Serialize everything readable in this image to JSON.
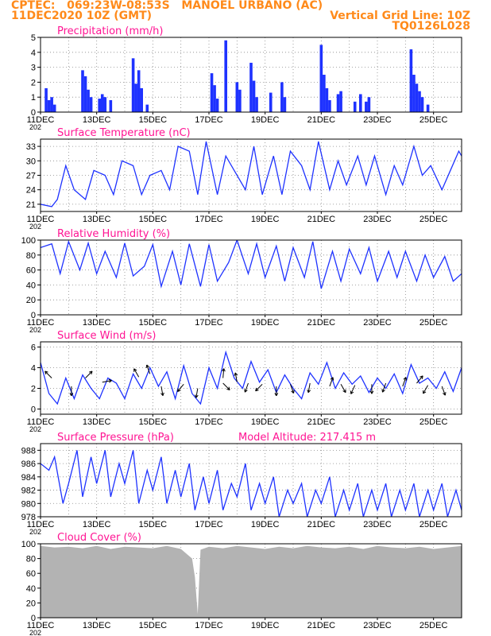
{
  "header": {
    "line1": "CPTEC:   069:23W-08:53S   MANOEL URBANO (AC)",
    "line2": "11DEC2020 10Z (GMT)",
    "grid_note": "Vertical Grid Line: 10Z",
    "code": "TQ0126L028"
  },
  "colors": {
    "header": "#ff8a1a",
    "title": "#ff1493",
    "series": "#1e32ff",
    "cloud": "#b3b3b3",
    "wind_arrow": "#000000",
    "grid": "#888888"
  },
  "x_axis": {
    "range_days": [
      11,
      26
    ],
    "tick_labels": [
      "11DEC",
      "13DEC",
      "15DEC",
      "17DEC",
      "19DEC",
      "21DEC",
      "23DEC",
      "25DEC"
    ],
    "year_fragment": "202"
  },
  "chart_data": [
    {
      "id": "precip",
      "type": "bar",
      "title": "Precipitation  (mm/h)",
      "ylim": [
        0,
        5
      ],
      "yticks": [
        "0",
        "1",
        "2",
        "3",
        "4",
        "5"
      ],
      "series": [
        {
          "x": [
            11.2,
            11.3,
            11.4,
            11.5,
            12.5,
            12.6,
            12.7,
            12.8,
            13.1,
            13.2,
            13.3,
            13.5,
            14.3,
            14.4,
            14.5,
            14.6,
            14.8,
            17.1,
            17.2,
            17.3,
            17.6,
            18.0,
            18.1,
            18.5,
            18.6,
            18.7,
            19.2,
            19.6,
            19.7,
            21.0,
            21.1,
            21.2,
            21.3,
            21.6,
            21.7,
            22.2,
            22.4,
            22.6,
            22.7,
            24.2,
            24.3,
            24.4,
            24.5,
            24.6,
            24.8
          ],
          "y": [
            1.6,
            0.8,
            1.0,
            0.5,
            2.8,
            2.4,
            1.5,
            1.0,
            0.9,
            1.2,
            1.0,
            0.8,
            3.6,
            1.9,
            2.8,
            1.6,
            0.5,
            2.6,
            1.8,
            0.9,
            4.8,
            2.0,
            1.5,
            3.3,
            2.1,
            1.0,
            1.3,
            2.0,
            1.0,
            4.5,
            2.5,
            1.6,
            0.8,
            1.2,
            1.4,
            0.7,
            1.2,
            0.7,
            1.0,
            4.2,
            2.5,
            1.9,
            1.4,
            1.0,
            0.5
          ]
        }
      ]
    },
    {
      "id": "temp",
      "type": "line",
      "title": "Surface Temperature (nC)",
      "ylim": [
        19.5,
        34.5
      ],
      "yticks": [
        "21",
        "24",
        "27",
        "30",
        "33"
      ],
      "series": [
        {
          "x": [
            11.0,
            11.4,
            11.6,
            11.9,
            12.2,
            12.6,
            12.9,
            13.3,
            13.6,
            13.9,
            14.3,
            14.6,
            14.9,
            15.3,
            15.6,
            15.9,
            16.3,
            16.6,
            16.9,
            17.3,
            17.6,
            17.9,
            18.3,
            18.6,
            18.9,
            19.3,
            19.6,
            19.9,
            20.3,
            20.6,
            20.9,
            21.3,
            21.6,
            21.9,
            22.3,
            22.6,
            22.9,
            23.3,
            23.6,
            23.9,
            24.3,
            24.6,
            24.9,
            25.3,
            25.6,
            25.9,
            26.0
          ],
          "y": [
            21,
            20.5,
            22,
            29,
            24,
            22,
            28,
            27,
            23,
            30,
            29,
            23,
            27,
            28,
            24,
            33,
            32,
            23,
            34,
            23,
            31,
            28,
            24,
            33,
            23,
            31,
            23,
            32,
            29,
            24,
            34,
            24,
            30,
            25,
            31,
            25,
            31,
            23,
            29,
            25,
            33,
            27,
            29,
            24,
            28,
            32,
            31
          ]
        }
      ]
    },
    {
      "id": "rh",
      "type": "line",
      "title": "Relative Humidity  (%)",
      "ylim": [
        0,
        100
      ],
      "yticks": [
        "0",
        "20",
        "40",
        "60",
        "80",
        "100"
      ],
      "series": [
        {
          "x": [
            11.0,
            11.4,
            11.7,
            12.0,
            12.4,
            12.7,
            13.0,
            13.3,
            13.7,
            14.0,
            14.3,
            14.7,
            15.0,
            15.3,
            15.7,
            16.0,
            16.3,
            16.7,
            17.0,
            17.3,
            17.7,
            18.0,
            18.4,
            18.7,
            19.0,
            19.4,
            19.7,
            20.0,
            20.4,
            20.7,
            21.0,
            21.4,
            21.7,
            22.0,
            22.4,
            22.7,
            23.0,
            23.4,
            23.7,
            24.0,
            24.4,
            24.7,
            25.0,
            25.4,
            25.7,
            26.0
          ],
          "y": [
            90,
            95,
            55,
            98,
            60,
            96,
            55,
            85,
            50,
            96,
            52,
            65,
            94,
            38,
            85,
            40,
            95,
            38,
            94,
            45,
            70,
            100,
            55,
            95,
            50,
            92,
            45,
            90,
            50,
            98,
            35,
            85,
            45,
            88,
            55,
            90,
            45,
            85,
            50,
            85,
            45,
            80,
            50,
            78,
            45,
            55
          ]
        }
      ]
    },
    {
      "id": "wind",
      "type": "line",
      "title": "Surface Wind  (m/s)",
      "ylim": [
        -0.5,
        6.5
      ],
      "yticks": [
        "0",
        "2",
        "4",
        "6"
      ],
      "series": [
        {
          "x": [
            11.0,
            11.3,
            11.6,
            11.9,
            12.2,
            12.5,
            12.8,
            13.1,
            13.4,
            13.7,
            14.0,
            14.3,
            14.6,
            14.9,
            15.2,
            15.5,
            15.8,
            16.1,
            16.4,
            16.7,
            17.0,
            17.3,
            17.6,
            17.9,
            18.2,
            18.5,
            18.8,
            19.1,
            19.4,
            19.7,
            20.0,
            20.3,
            20.6,
            20.9,
            21.2,
            21.5,
            21.8,
            22.1,
            22.4,
            22.7,
            23.0,
            23.3,
            23.6,
            23.9,
            24.2,
            24.5,
            24.8,
            25.1,
            25.4,
            25.7,
            26.0
          ],
          "y": [
            4.5,
            1.5,
            0.5,
            3.0,
            1.0,
            3.3,
            2.0,
            1.0,
            3.0,
            2.5,
            1.0,
            3.4,
            2.0,
            4.0,
            2.2,
            3.6,
            1.0,
            4.2,
            1.5,
            0.5,
            4.0,
            2.0,
            5.5,
            3.0,
            2.0,
            4.6,
            2.6,
            3.8,
            1.6,
            3.3,
            2.0,
            1.0,
            3.5,
            2.4,
            4.5,
            2.0,
            3.5,
            2.4,
            3.2,
            1.6,
            3.0,
            2.0,
            3.4,
            1.5,
            4.3,
            2.5,
            3.0,
            2.0,
            3.6,
            1.7,
            4.0
          ]
        }
      ],
      "arrows": [
        [
          11.4,
          3,
          225
        ],
        [
          12.1,
          2.2,
          0
        ],
        [
          12.6,
          3,
          135
        ],
        [
          13.2,
          2.6,
          100
        ],
        [
          14.5,
          3.1,
          210
        ],
        [
          14.9,
          3.4,
          200
        ],
        [
          15.3,
          2.2,
          10
        ],
        [
          16.1,
          2.4,
          320
        ],
        [
          16.6,
          2,
          350
        ],
        [
          17.5,
          2.5,
          45
        ],
        [
          17.5,
          3,
          175
        ],
        [
          18.0,
          2.6,
          190
        ],
        [
          18.4,
          2.5,
          340
        ],
        [
          18.9,
          2.4,
          315
        ],
        [
          19.4,
          2.2,
          0
        ],
        [
          19.9,
          2.4,
          20
        ],
        [
          20.6,
          2.5,
          350
        ],
        [
          21.3,
          2.2,
          160
        ],
        [
          21.7,
          2.4,
          30
        ],
        [
          22.2,
          2.3,
          335
        ],
        [
          22.8,
          2.4,
          0
        ],
        [
          23.3,
          2.5,
          340
        ],
        [
          23.9,
          2.2,
          160
        ],
        [
          24.4,
          2.5,
          140
        ],
        [
          24.8,
          2.3,
          330
        ],
        [
          25.3,
          2.2,
          20
        ]
      ]
    },
    {
      "id": "pres",
      "type": "line",
      "title": "Surface Pressure (hPa)",
      "annotation": "Model Altitude: 217.415  m",
      "ylim": [
        978,
        989
      ],
      "yticks": [
        "978",
        "980",
        "982",
        "984",
        "986",
        "988"
      ],
      "series": [
        {
          "x": [
            11.0,
            11.3,
            11.5,
            11.8,
            12.0,
            12.3,
            12.5,
            12.8,
            13.0,
            13.3,
            13.5,
            13.8,
            14.0,
            14.3,
            14.5,
            14.8,
            15.0,
            15.3,
            15.5,
            15.8,
            16.0,
            16.3,
            16.5,
            16.8,
            17.0,
            17.3,
            17.5,
            17.8,
            18.0,
            18.3,
            18.5,
            18.8,
            19.0,
            19.3,
            19.5,
            19.8,
            20.0,
            20.3,
            20.5,
            20.8,
            21.0,
            21.3,
            21.5,
            21.8,
            22.0,
            22.3,
            22.5,
            22.8,
            23.0,
            23.3,
            23.5,
            23.8,
            24.0,
            24.3,
            24.5,
            24.8,
            25.0,
            25.3,
            25.5,
            25.8,
            26.0
          ],
          "y": [
            986,
            985,
            987,
            980,
            983,
            988,
            981,
            987,
            983,
            988,
            981,
            986,
            983,
            988,
            980,
            985,
            982,
            987,
            980,
            985,
            981,
            986,
            979,
            984,
            980,
            985,
            979,
            983,
            981,
            986,
            979,
            983,
            980,
            984,
            978,
            982,
            980,
            983,
            978,
            982,
            980,
            984,
            978,
            982,
            979,
            983,
            978,
            982,
            979,
            983,
            978,
            982,
            979,
            983,
            978,
            982,
            979,
            983,
            978,
            982,
            979
          ]
        }
      ]
    },
    {
      "id": "cloud",
      "type": "area",
      "title": "Cloud Cover  (%)",
      "ylim": [
        0,
        100
      ],
      "yticks": [
        "0",
        "20",
        "40",
        "60",
        "80",
        "100"
      ],
      "series": [
        {
          "x": [
            11.0,
            11.5,
            12.0,
            12.5,
            13.0,
            13.5,
            14.0,
            14.5,
            15.0,
            15.5,
            16.0,
            16.4,
            16.5,
            16.6,
            16.7,
            17.0,
            17.5,
            18.0,
            18.5,
            19.0,
            19.5,
            20.0,
            20.5,
            21.0,
            21.5,
            22.0,
            22.5,
            23.0,
            23.5,
            24.0,
            24.5,
            25.0,
            25.5,
            26.0
          ],
          "y": [
            97,
            95,
            96,
            94,
            97,
            93,
            96,
            95,
            94,
            97,
            93,
            80,
            55,
            5,
            92,
            96,
            94,
            97,
            95,
            93,
            96,
            94,
            97,
            95,
            94,
            96,
            93,
            97,
            95,
            94,
            96,
            93,
            95,
            97
          ]
        }
      ]
    }
  ]
}
